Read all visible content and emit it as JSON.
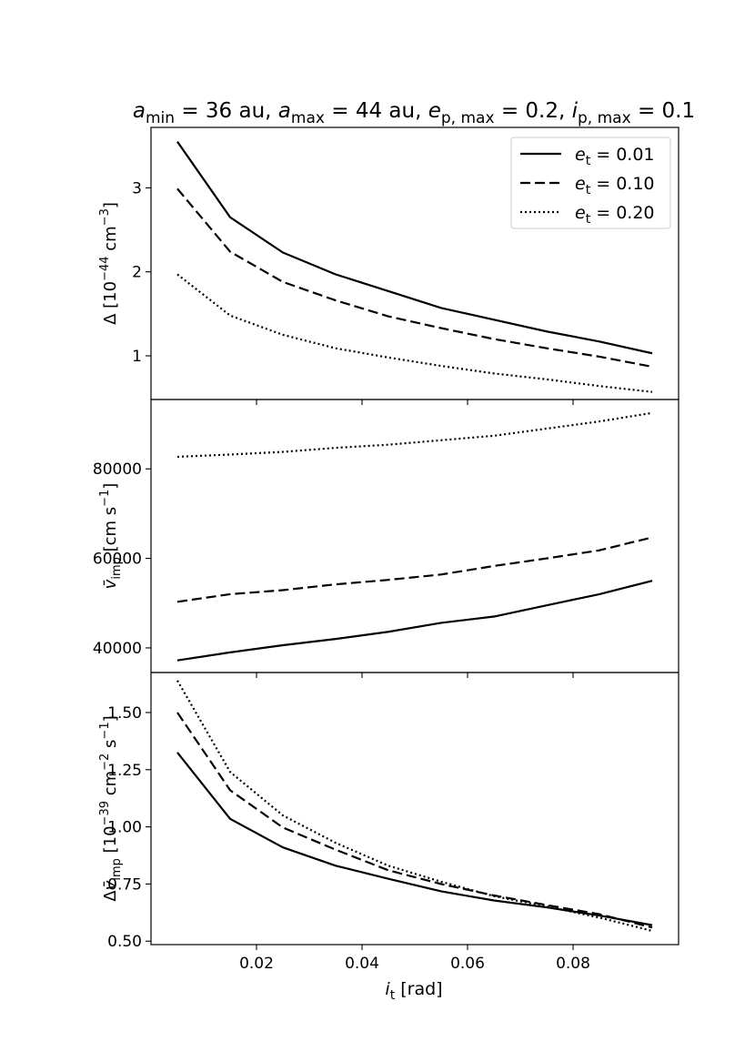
{
  "chart_data": {
    "type": "line",
    "title": {
      "parts": [
        {
          "t": "a",
          "style": "italic"
        },
        {
          "t": "min",
          "style": "sub"
        },
        {
          "t": " = 36 au, "
        },
        {
          "t": "a",
          "style": "italic"
        },
        {
          "t": "max",
          "style": "sub"
        },
        {
          "t": " = 44 au, "
        },
        {
          "t": "e",
          "style": "italic"
        },
        {
          "t": "p, max",
          "style": "sub"
        },
        {
          "t": " = 0.2, "
        },
        {
          "t": "i",
          "style": "italic"
        },
        {
          "t": "p, max",
          "style": "sub"
        },
        {
          "t": " = 0.1"
        }
      ]
    },
    "x": [
      0.005,
      0.015,
      0.025,
      0.035,
      0.045,
      0.055,
      0.065,
      0.075,
      0.085,
      0.095
    ],
    "xlim": [
      0.0,
      0.1
    ],
    "xticks": [
      0.02,
      0.04,
      0.06,
      0.08
    ],
    "xtick_labels": [
      "0.02",
      "0.04",
      "0.06",
      "0.08"
    ],
    "xlabel": {
      "parts": [
        {
          "t": "i",
          "style": "italic"
        },
        {
          "t": "t",
          "style": "sub"
        },
        {
          "t": " [rad]"
        }
      ]
    },
    "legend": {
      "placement": "top-right",
      "entries": [
        {
          "series_index": 0,
          "parts": [
            {
              "t": "e",
              "style": "italic"
            },
            {
              "t": "t",
              "style": "sub"
            },
            {
              "t": " = 0.01"
            }
          ]
        },
        {
          "series_index": 1,
          "parts": [
            {
              "t": "e",
              "style": "italic"
            },
            {
              "t": "t",
              "style": "sub"
            },
            {
              "t": " = 0.10"
            }
          ]
        },
        {
          "series_index": 2,
          "parts": [
            {
              "t": "e",
              "style": "italic"
            },
            {
              "t": "t",
              "style": "sub"
            },
            {
              "t": " = 0.20"
            }
          ]
        }
      ]
    },
    "series": [
      {
        "name": "e_t = 0.01",
        "dash": "solid",
        "color": "#000000"
      },
      {
        "name": "e_t = 0.10",
        "dash": "dashed",
        "color": "#000000"
      },
      {
        "name": "e_t = 0.20",
        "dash": "dotted",
        "color": "#000000"
      }
    ],
    "panels": [
      {
        "name": "delta",
        "ylim": [
          0.48,
          3.72
        ],
        "yticks": [
          1,
          2,
          3
        ],
        "ytick_labels": [
          "1",
          "2",
          "3"
        ],
        "ylabel": {
          "parts": [
            {
              "t": "Δ [10"
            },
            {
              "t": "−44",
              "style": "sup"
            },
            {
              "t": " cm"
            },
            {
              "t": "−3",
              "style": "sup"
            },
            {
              "t": "]"
            }
          ]
        },
        "series_values": [
          [
            3.55,
            2.65,
            2.23,
            1.97,
            1.77,
            1.57,
            1.43,
            1.29,
            1.17,
            1.03
          ],
          [
            2.99,
            2.24,
            1.88,
            1.66,
            1.47,
            1.33,
            1.2,
            1.09,
            0.99,
            0.87
          ],
          [
            1.97,
            1.48,
            1.25,
            1.09,
            0.98,
            0.88,
            0.79,
            0.72,
            0.64,
            0.57
          ]
        ]
      },
      {
        "name": "v_imp",
        "ylim": [
          34500,
          95500
        ],
        "yticks": [
          40000,
          60000,
          80000
        ],
        "ytick_labels": [
          "40000",
          "60000",
          "80000"
        ],
        "ylabel": {
          "parts": [
            {
              "t": "v̄",
              "style": "italic"
            },
            {
              "t": "imp",
              "style": "sub"
            },
            {
              "t": " [cm s"
            },
            {
              "t": "−1",
              "style": "sup"
            },
            {
              "t": "]"
            }
          ]
        },
        "series_values": [
          [
            37200,
            39000,
            40600,
            42000,
            43600,
            45600,
            47000,
            49500,
            52000,
            55000
          ],
          [
            50300,
            52000,
            52900,
            54200,
            55200,
            56400,
            58300,
            60000,
            61800,
            64700
          ],
          [
            82700,
            83200,
            83800,
            84700,
            85400,
            86400,
            87400,
            89000,
            90600,
            92500
          ]
        ]
      },
      {
        "name": "delta_v_imp",
        "ylim": [
          0.485,
          1.675
        ],
        "yticks": [
          0.5,
          0.75,
          1.0,
          1.25,
          1.5
        ],
        "ytick_labels": [
          "0.50",
          "0.75",
          "1.00",
          "1.25",
          "1.50"
        ],
        "ylabel": {
          "parts": [
            {
              "t": "Δ"
            },
            {
              "t": "v̄",
              "style": "italic"
            },
            {
              "t": "imp",
              "style": "sub"
            },
            {
              "t": " [10"
            },
            {
              "t": "−39",
              "style": "sup"
            },
            {
              "t": " cm"
            },
            {
              "t": "−2",
              "style": "sup"
            },
            {
              "t": " s"
            },
            {
              "t": "−1",
              "style": "sup"
            },
            {
              "t": "]"
            }
          ]
        },
        "series_values": [
          [
            1.325,
            1.035,
            0.91,
            0.83,
            0.773,
            0.718,
            0.678,
            0.648,
            0.612,
            0.57
          ],
          [
            1.5,
            1.16,
            0.997,
            0.9,
            0.81,
            0.75,
            0.7,
            0.658,
            0.618,
            0.56
          ],
          [
            1.64,
            1.24,
            1.05,
            0.93,
            0.83,
            0.76,
            0.697,
            0.652,
            0.603,
            0.545
          ]
        ]
      }
    ]
  }
}
